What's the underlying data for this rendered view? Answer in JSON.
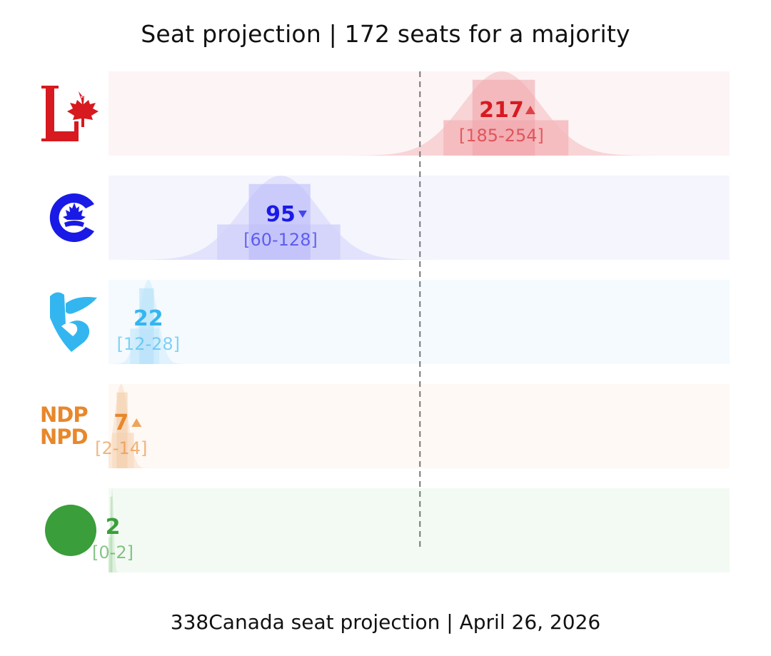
{
  "title": "Seat projection | 172 seats for a majority",
  "footer": "338Canada seat projection | April 26, 2026",
  "logos": {
    "liberal": "liberal-logo-icon",
    "conservative": "conservative-logo-icon",
    "bloc": "bloc-quebecois-logo-icon",
    "ndp": "ndp-logo-icon",
    "green": "green-logo-icon",
    "ndp_text_en": "NDP",
    "ndp_text_fr": "NPD"
  },
  "chart_data": {
    "type": "bar",
    "xlim": [
      0,
      343
    ],
    "majority_line": 172,
    "categories": [
      "Liberal",
      "Conservative",
      "Bloc Québécois",
      "NDP",
      "Green"
    ],
    "series": [
      {
        "party": "Liberal",
        "projection": 217,
        "range_label": "[185-254]",
        "low": 185,
        "high": 254,
        "trend": "up",
        "color": "#D71920",
        "bg": "#FDF4F5",
        "band": "#F4B9BC",
        "band_inner": "#EFA3A7"
      },
      {
        "party": "Conservative",
        "projection": 95,
        "range_label": "[60-128]",
        "low": 60,
        "high": 128,
        "trend": "down",
        "color": "#1A1AE6",
        "bg": "#F5F5FE",
        "band": "#D2D2FC",
        "band_inner": "#B7B7FA"
      },
      {
        "party": "Bloc Québécois",
        "projection": 22,
        "range_label": "[12-28]",
        "low": 12,
        "high": 28,
        "trend": "none",
        "color": "#33B6F0",
        "bg": "#F4FAFE",
        "band": "#CDEBFB",
        "band_inner": "#AEDFF8"
      },
      {
        "party": "NDP",
        "projection": 7,
        "range_label": "[2-14]",
        "low": 2,
        "high": 14,
        "trend": "up",
        "color": "#E8872B",
        "bg": "#FEF9F4",
        "band": "#F8DDC4",
        "band_inner": "#F3CBA6"
      },
      {
        "party": "Green",
        "projection": 2,
        "range_label": "[0-2]",
        "low": 0,
        "high": 2,
        "trend": "none",
        "color": "#3A9E3A",
        "bg": "#F3FAF3",
        "band": "#CDE8CD",
        "band_inner": "#B0DAB0"
      }
    ]
  }
}
